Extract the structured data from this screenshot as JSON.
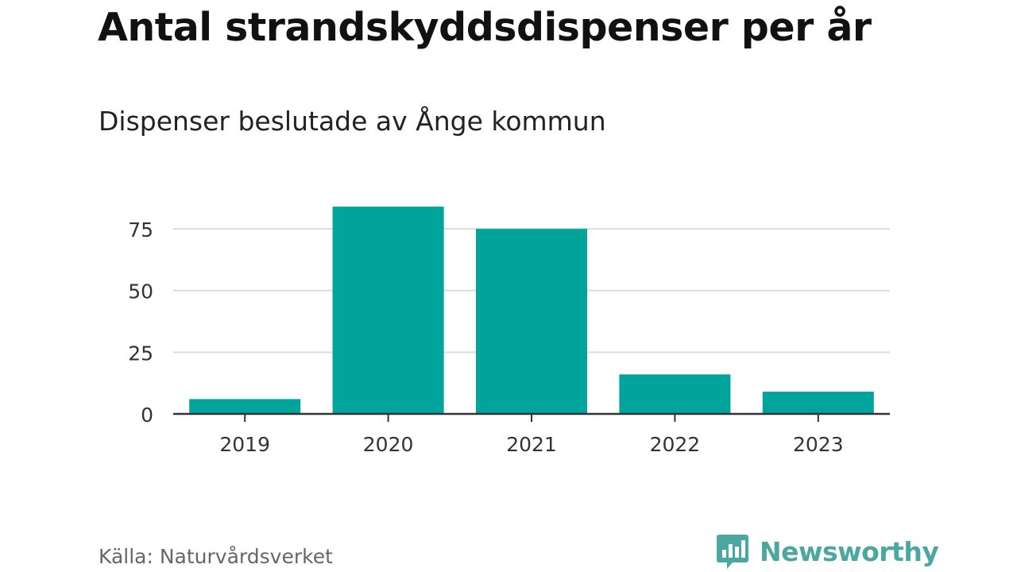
{
  "chart_data": {
    "type": "bar",
    "title": "Antal strandskyddsdispenser per år",
    "subtitle": "Dispenser beslutade av Ånge kommun",
    "categories": [
      "2019",
      "2020",
      "2021",
      "2022",
      "2023"
    ],
    "values": [
      6,
      84,
      75,
      16,
      9
    ],
    "ylim": [
      0,
      85
    ],
    "yticks": [
      0,
      25,
      50,
      75
    ],
    "xlabel": "",
    "ylabel": "",
    "grid": true,
    "bar_color": "#00a49a"
  },
  "footer": {
    "source": "Källa: Naturvårdsverket",
    "brand": "Newsworthy",
    "brand_icon": "bar-chart-speech-bubble-icon",
    "brand_color": "#4aa8a0"
  }
}
